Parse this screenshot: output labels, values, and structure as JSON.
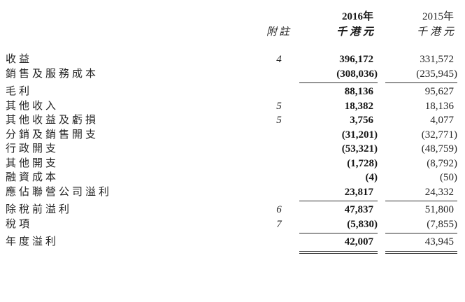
{
  "page": {
    "background_color": "#ffffff",
    "text_color": "#242424",
    "accent_bold_color": "#161616",
    "rule_color": "#2e2e2e"
  },
  "table": {
    "header": {
      "note_label": "附註",
      "col_2016": {
        "year": "2016年",
        "unit": "千港元"
      },
      "col_2015": {
        "year": "2015年",
        "unit": "千港元"
      }
    },
    "sections": [
      {
        "rule": "single",
        "rows": [
          {
            "label": "收益",
            "note": "4",
            "v2016": "396,172",
            "v2015": "331,572"
          },
          {
            "label": "銷售及服務成本",
            "v2016": "(308,036)",
            "v2015": "(235,945)"
          }
        ]
      },
      {
        "rule": "single",
        "rows": [
          {
            "label": "毛利",
            "v2016": "88,136",
            "v2015": "95,627"
          },
          {
            "label": "其他收入",
            "note": "5",
            "v2016": "18,382",
            "v2015": "18,136"
          },
          {
            "label": "其他收益及虧損",
            "note": "5",
            "v2016": "3,756",
            "v2015": "4,077"
          },
          {
            "label": "分銷及銷售開支",
            "v2016": "(31,201)",
            "v2015": "(32,771)"
          },
          {
            "label": "行政開支",
            "v2016": "(53,321)",
            "v2015": "(48,759)"
          },
          {
            "label": "其他開支",
            "v2016": "(1,728)",
            "v2015": "(8,792)"
          },
          {
            "label": "融資成本",
            "v2016": "(4)",
            "v2015": "(50)"
          },
          {
            "label": "應佔聯營公司溢利",
            "v2016": "23,817",
            "v2015": "24,332"
          }
        ]
      },
      {
        "rule": "single",
        "rows": [
          {
            "label": "除稅前溢利",
            "note": "6",
            "v2016": "47,837",
            "v2015": "51,800"
          },
          {
            "label": "稅項",
            "note": "7",
            "v2016": "(5,830)",
            "v2015": "(7,855)"
          }
        ]
      },
      {
        "rule": "double",
        "rows": [
          {
            "label": "年度溢利",
            "v2016": "42,007",
            "v2015": "43,945"
          }
        ]
      }
    ]
  }
}
